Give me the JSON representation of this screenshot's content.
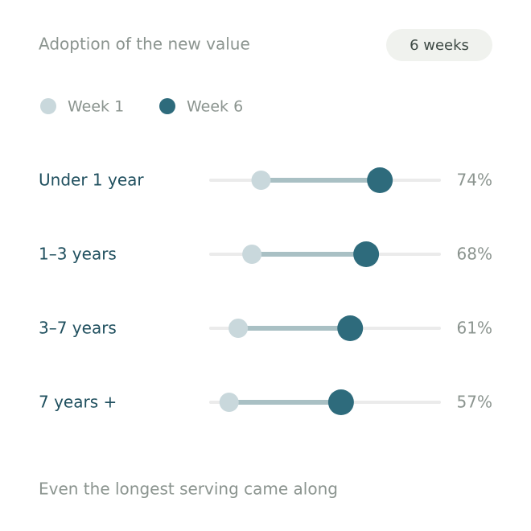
{
  "chart_data": {
    "type": "dumbbell",
    "title": "Adoption of the new value",
    "badge": "6 weeks",
    "categories": [
      "Under 1 year",
      "1–3 years",
      "3–7 years",
      "7 years +"
    ],
    "series": [
      {
        "name": "Week 1",
        "color": "#c9d8dc",
        "values": [
          22,
          18,
          12,
          8
        ]
      },
      {
        "name": "Week 6",
        "color": "#2e6b7c",
        "values": [
          74,
          68,
          61,
          57
        ],
        "value_labels": [
          "74%",
          "68%",
          "61%",
          "57%"
        ]
      }
    ],
    "xlim": [
      0,
      100
    ],
    "footnote": "Even the longest serving came along"
  }
}
